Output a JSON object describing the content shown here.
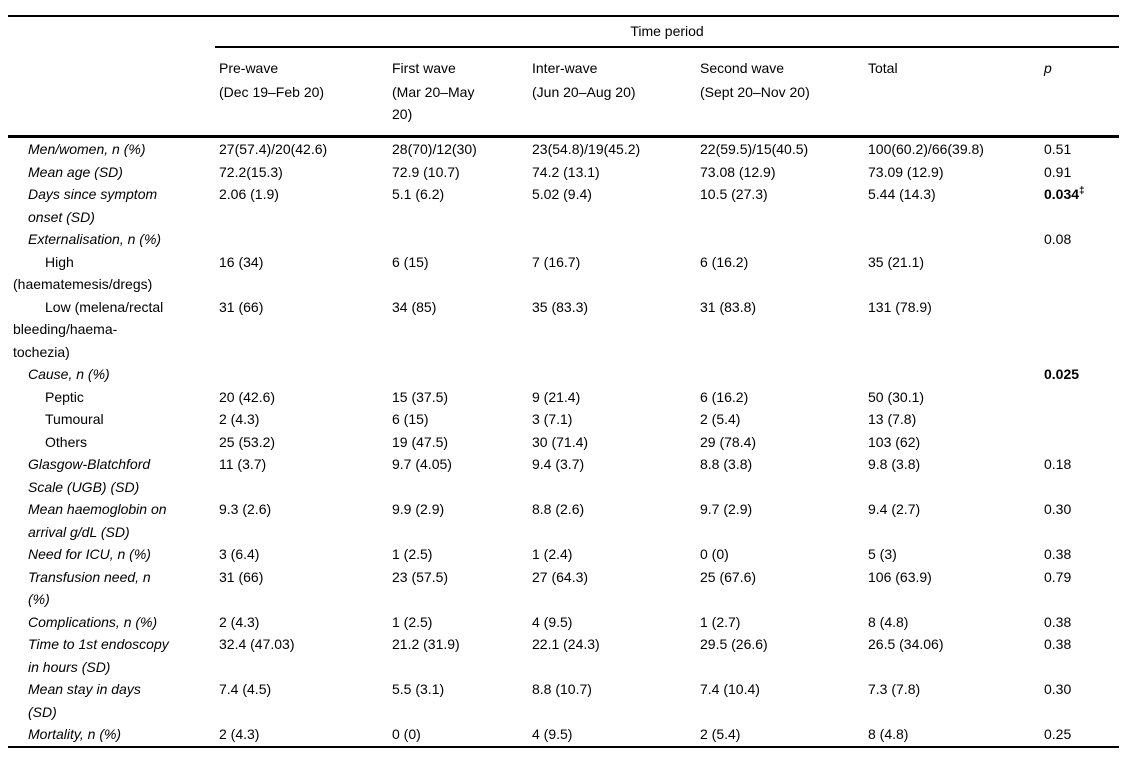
{
  "header": {
    "spanner": "Time period",
    "columns": [
      {
        "label": "Pre-wave",
        "sub": "(Dec 19–Feb 20)"
      },
      {
        "label": "First wave",
        "sub": "(Mar 20–May\n20)"
      },
      {
        "label": "Inter-wave",
        "sub": "(Jun 20–Aug 20)"
      },
      {
        "label": "Second wave",
        "sub": "(Sept 20–Nov 20)"
      },
      {
        "label": "Total",
        "sub": ""
      },
      {
        "label": "p",
        "sub": ""
      }
    ]
  },
  "rows": [
    {
      "label": "Men/women, n (%)",
      "kind": "main",
      "values": [
        "27(57.4)/20(42.6)",
        "28(70)/12(30)",
        "23(54.8)/19(45.2)",
        "22(59.5)/15(40.5)",
        "100(60.2)/66(39.8)"
      ],
      "p": "0.51",
      "p_bold": false,
      "p_sup": ""
    },
    {
      "label": "Mean age (SD)",
      "kind": "main",
      "values": [
        "72.2(15.3)",
        "72.9 (10.7)",
        "74.2 (13.1)",
        "73.08 (12.9)",
        "73.09 (12.9)"
      ],
      "p": "0.91",
      "p_bold": false,
      "p_sup": ""
    },
    {
      "label": "Days since symptom\nonset (SD)",
      "kind": "main",
      "values": [
        "2.06 (1.9)",
        "5.1 (6.2)",
        "5.02 (9.4)",
        "10.5 (27.3)",
        "5.44 (14.3)"
      ],
      "p": "0.034",
      "p_bold": true,
      "p_sup": "‡"
    },
    {
      "label": "Externalisation, n (%)",
      "kind": "main",
      "values": [
        "",
        "",
        "",
        "",
        ""
      ],
      "p": "0.08",
      "p_bold": false,
      "p_sup": ""
    },
    {
      "label": "High\n(haematemesis/dregs)",
      "kind": "sub",
      "values": [
        "16 (34)",
        "6 (15)",
        "7 (16.7)",
        "6 (16.2)",
        "35 (21.1)"
      ],
      "p": "",
      "p_bold": false,
      "p_sup": ""
    },
    {
      "label": "Low (melena/rectal\nbleeding/haema-\ntochezia)",
      "kind": "sub",
      "values": [
        "31 (66)",
        "34 (85)",
        "35 (83.3)",
        "31 (83.8)",
        "131 (78.9)"
      ],
      "p": "",
      "p_bold": false,
      "p_sup": ""
    },
    {
      "label": "Cause, n (%)",
      "kind": "main",
      "values": [
        "",
        "",
        "",
        "",
        ""
      ],
      "p": "0.025",
      "p_bold": true,
      "p_sup": ""
    },
    {
      "label": "Peptic",
      "kind": "sub",
      "values": [
        "20 (42.6)",
        "15 (37.5)",
        "9 (21.4)",
        "6 (16.2)",
        "50 (30.1)"
      ],
      "p": "",
      "p_bold": false,
      "p_sup": ""
    },
    {
      "label": "Tumoural",
      "kind": "sub",
      "values": [
        "2 (4.3)",
        "6 (15)",
        "3 (7.1)",
        "2 (5.4)",
        "13 (7.8)"
      ],
      "p": "",
      "p_bold": false,
      "p_sup": ""
    },
    {
      "label": "Others",
      "kind": "sub",
      "values": [
        "25 (53.2)",
        "19 (47.5)",
        "30 (71.4)",
        "29 (78.4)",
        "103 (62)"
      ],
      "p": "",
      "p_bold": false,
      "p_sup": ""
    },
    {
      "label": "Glasgow-Blatchford\nScale (UGB) (SD)",
      "kind": "main",
      "values": [
        "11 (3.7)",
        "9.7 (4.05)",
        "9.4 (3.7)",
        "8.8 (3.8)",
        "9.8 (3.8)"
      ],
      "p": "0.18",
      "p_bold": false,
      "p_sup": ""
    },
    {
      "label": "Mean haemoglobin on\narrival g/dL (SD)",
      "kind": "main",
      "values": [
        "9.3 (2.6)",
        "9.9 (2.9)",
        "8.8 (2.6)",
        "9.7 (2.9)",
        "9.4 (2.7)"
      ],
      "p": "0.30",
      "p_bold": false,
      "p_sup": ""
    },
    {
      "label": "Need for ICU, n (%)",
      "kind": "main",
      "values": [
        "3 (6.4)",
        "1 (2.5)",
        "1 (2.4)",
        "0 (0)",
        "5 (3)"
      ],
      "p": "0.38",
      "p_bold": false,
      "p_sup": ""
    },
    {
      "label": "Transfusion need, n\n(%)",
      "kind": "main",
      "values": [
        "31 (66)",
        "23 (57.5)",
        "27 (64.3)",
        "25 (67.6)",
        "106 (63.9)"
      ],
      "p": "0.79",
      "p_bold": false,
      "p_sup": ""
    },
    {
      "label": "Complications, n (%)",
      "kind": "main",
      "values": [
        "2 (4.3)",
        "1 (2.5)",
        "4 (9.5)",
        "1 (2.7)",
        "8 (4.8)"
      ],
      "p": "0.38",
      "p_bold": false,
      "p_sup": ""
    },
    {
      "label": "Time to 1st endoscopy\nin hours (SD)",
      "kind": "main",
      "values": [
        "32.4 (47.03)",
        "21.2 (31.9)",
        "22.1 (24.3)",
        "29.5 (26.6)",
        "26.5 (34.06)"
      ],
      "p": "0.38",
      "p_bold": false,
      "p_sup": ""
    },
    {
      "label": "Mean stay in days\n(SD)",
      "kind": "main",
      "values": [
        "7.4 (4.5)",
        "5.5 (3.1)",
        "8.8 (10.7)",
        "7.4 (10.4)",
        "7.3 (7.8)"
      ],
      "p": "0.30",
      "p_bold": false,
      "p_sup": ""
    },
    {
      "label": "Mortality, n (%)",
      "kind": "main",
      "values": [
        "2 (4.3)",
        "0 (0)",
        "4 (9.5)",
        "2 (5.4)",
        "8 (4.8)"
      ],
      "p": "0.25",
      "p_bold": false,
      "p_sup": ""
    }
  ]
}
